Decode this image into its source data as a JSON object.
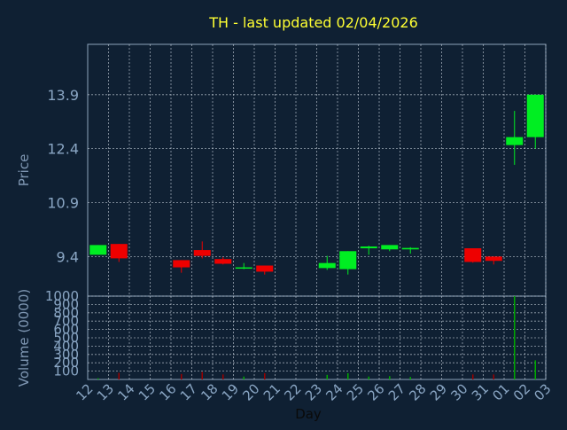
{
  "chart_data": {
    "type": "candlestick",
    "title": "TH - last updated 02/04/2026",
    "xlabel": "Day",
    "colors": {
      "background": "#0f2033",
      "plot_border": "#8ea3bb",
      "grid": "#c8d2dc",
      "title": "#ffff33",
      "axis_label": "#7f97b3",
      "tick_label": "#8aa6c4",
      "up": "#00ee22",
      "down": "#ee0000",
      "volume_up": "#00aa00",
      "volume_down": "#990000"
    },
    "price_panel": {
      "ylabel": "Price",
      "ylim": [
        8.3,
        15.3
      ],
      "yticks": [
        "9.4",
        "10.9",
        "12.4",
        "13.9"
      ],
      "grid": true
    },
    "volume_panel": {
      "ylabel": "Volume (0000)",
      "ylim": [
        0,
        1000
      ],
      "yticks": [
        "100",
        "200",
        "300",
        "400",
        "500",
        "600",
        "700",
        "800",
        "900",
        "1000"
      ],
      "grid": true
    },
    "days": [
      "12",
      "13",
      "14",
      "15",
      "16",
      "17",
      "18",
      "19",
      "20",
      "21",
      "22",
      "23",
      "24",
      "25",
      "26",
      "27",
      "28",
      "29",
      "30",
      "31",
      "01",
      "02",
      "03"
    ],
    "candles": [
      {
        "day": "12",
        "open": 9.45,
        "high": 9.72,
        "low": 9.45,
        "close": 9.72,
        "volume": 15
      },
      {
        "day": "13",
        "open": 9.75,
        "high": 9.75,
        "low": 9.25,
        "close": 9.35,
        "volume": 80
      },
      {
        "day": "16",
        "open": 9.3,
        "high": 9.3,
        "low": 8.95,
        "close": 9.1,
        "volume": 65
      },
      {
        "day": "17",
        "open": 9.58,
        "high": 9.82,
        "low": 9.35,
        "close": 9.42,
        "volume": 90
      },
      {
        "day": "18",
        "open": 9.33,
        "high": 9.38,
        "low": 9.18,
        "close": 9.2,
        "volume": 60
      },
      {
        "day": "19",
        "open": 9.09,
        "high": 9.22,
        "low": 9.05,
        "close": 9.1,
        "volume": 35
      },
      {
        "day": "20",
        "open": 9.15,
        "high": 9.15,
        "low": 8.9,
        "close": 8.98,
        "volume": 75
      },
      {
        "day": "23",
        "open": 9.08,
        "high": 9.42,
        "low": 9.03,
        "close": 9.22,
        "volume": 55
      },
      {
        "day": "24",
        "open": 9.05,
        "high": 9.55,
        "low": 8.9,
        "close": 9.55,
        "volume": 75
      },
      {
        "day": "25",
        "open": 9.63,
        "high": 9.7,
        "low": 9.45,
        "close": 9.68,
        "volume": 35
      },
      {
        "day": "26",
        "open": 9.6,
        "high": 9.72,
        "low": 9.55,
        "close": 9.72,
        "volume": 40
      },
      {
        "day": "27",
        "open": 9.6,
        "high": 9.66,
        "low": 9.48,
        "close": 9.64,
        "volume": 30
      },
      {
        "day": "30",
        "open": 9.63,
        "high": 9.63,
        "low": 9.23,
        "close": 9.25,
        "volume": 60
      },
      {
        "day": "31",
        "open": 9.4,
        "high": 9.4,
        "low": 9.18,
        "close": 9.28,
        "volume": 60
      },
      {
        "day": "01",
        "open": 12.5,
        "high": 13.45,
        "low": 11.95,
        "close": 12.72,
        "volume": 1000
      },
      {
        "day": "02",
        "open": 12.72,
        "high": 13.9,
        "low": 12.4,
        "close": 13.9,
        "volume": 230
      }
    ]
  }
}
